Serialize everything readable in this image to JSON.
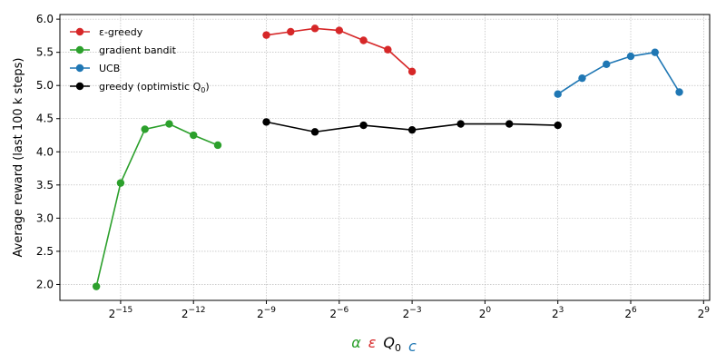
{
  "chart_data": {
    "type": "line",
    "title": "",
    "ylabel": "Average reward (last 100 k steps)",
    "xscale": "log2",
    "xlim_exp": [
      -17.5,
      9.25
    ],
    "ylim": [
      1.76,
      6.07
    ],
    "grid": true,
    "legend_position": "upper-left",
    "x_ticks": [
      {
        "exp": -15,
        "base": "2",
        "sup": "−15"
      },
      {
        "exp": -12,
        "base": "2",
        "sup": "−12"
      },
      {
        "exp": -9,
        "base": "2",
        "sup": "−9"
      },
      {
        "exp": -6,
        "base": "2",
        "sup": "−6"
      },
      {
        "exp": -3,
        "base": "2",
        "sup": "−3"
      },
      {
        "exp": 0,
        "base": "2",
        "sup": "0"
      },
      {
        "exp": 3,
        "base": "2",
        "sup": "3"
      },
      {
        "exp": 6,
        "base": "2",
        "sup": "6"
      },
      {
        "exp": 9,
        "base": "2",
        "sup": "9"
      }
    ],
    "y_ticks": [
      "2.0",
      "2.5",
      "3.0",
      "3.5",
      "4.0",
      "4.5",
      "5.0",
      "5.5",
      "6.0"
    ],
    "xlabel_symbols": [
      {
        "text": "α",
        "color": "#2ca02c"
      },
      {
        "text": "ε",
        "color": "#d62728"
      },
      {
        "text": "Q",
        "sub": "0",
        "color": "#000000"
      },
      {
        "text": "c",
        "color": "#1f77b4"
      }
    ],
    "series": [
      {
        "name": "ε-greedy",
        "color": "#d62728",
        "x_exp": [
          -9,
          -8,
          -7,
          -6,
          -5,
          -4,
          -3
        ],
        "y": [
          5.76,
          5.81,
          5.86,
          5.83,
          5.68,
          5.54,
          5.21
        ]
      },
      {
        "name": "gradient bandit",
        "color": "#2ca02c",
        "x_exp": [
          -16,
          -15,
          -14,
          -13,
          -12,
          -11
        ],
        "y": [
          1.97,
          3.53,
          4.34,
          4.42,
          4.25,
          4.1
        ]
      },
      {
        "name": "UCB",
        "color": "#1f77b4",
        "x_exp": [
          3,
          4,
          5,
          6,
          7,
          8
        ],
        "y": [
          4.87,
          5.11,
          5.32,
          5.44,
          5.5,
          4.9
        ]
      },
      {
        "name": "greedy (optimistic Q",
        "name_sub": "0",
        "name_tail": ")",
        "color": "#000000",
        "x_exp": [
          -9,
          -7,
          -5,
          -3,
          -1,
          1,
          3
        ],
        "y": [
          4.45,
          4.3,
          4.4,
          4.33,
          4.42,
          4.42,
          4.4
        ]
      }
    ]
  }
}
